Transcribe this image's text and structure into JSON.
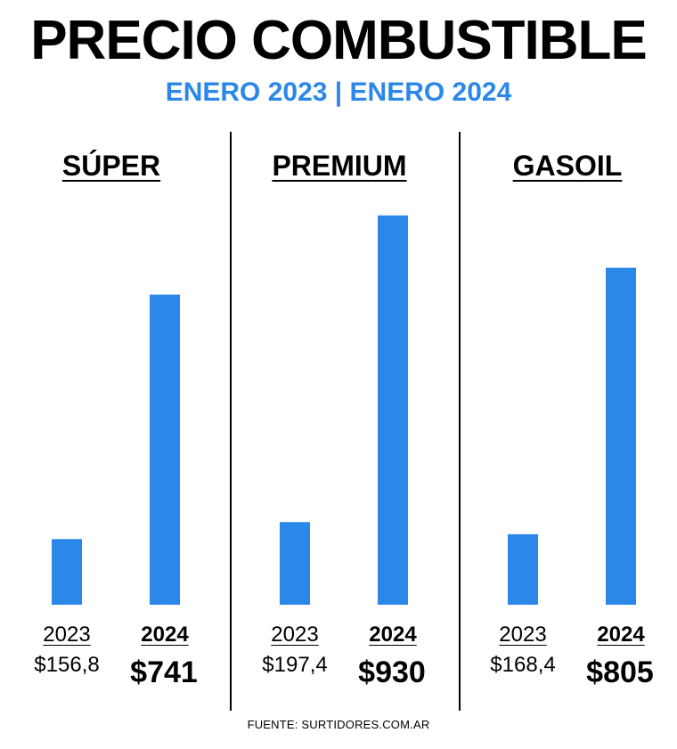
{
  "header": {
    "title": "PRECIO COMBUSTIBLE",
    "subtitle": "ENERO 2023 | ENERO 2024"
  },
  "colors": {
    "bar": "#2b88e8",
    "subtitle": "#2b88e8",
    "text": "#000000",
    "background": "#ffffff"
  },
  "chart_data": [
    {
      "type": "bar",
      "title": "SÚPER",
      "categories": [
        "2023",
        "2024"
      ],
      "values": [
        156.8,
        741
      ],
      "value_labels": [
        "$156,8",
        "$741"
      ]
    },
    {
      "type": "bar",
      "title": "PREMIUM",
      "categories": [
        "2023",
        "2024"
      ],
      "values": [
        197.4,
        930
      ],
      "value_labels": [
        "$197,4",
        "$930"
      ]
    },
    {
      "type": "bar",
      "title": "GASOIL",
      "categories": [
        "2023",
        "2024"
      ],
      "values": [
        168.4,
        805
      ],
      "value_labels": [
        "$168,4",
        "$805"
      ]
    }
  ],
  "footer": {
    "source": "FUENTE: SURTIDORES.COM.AR"
  }
}
